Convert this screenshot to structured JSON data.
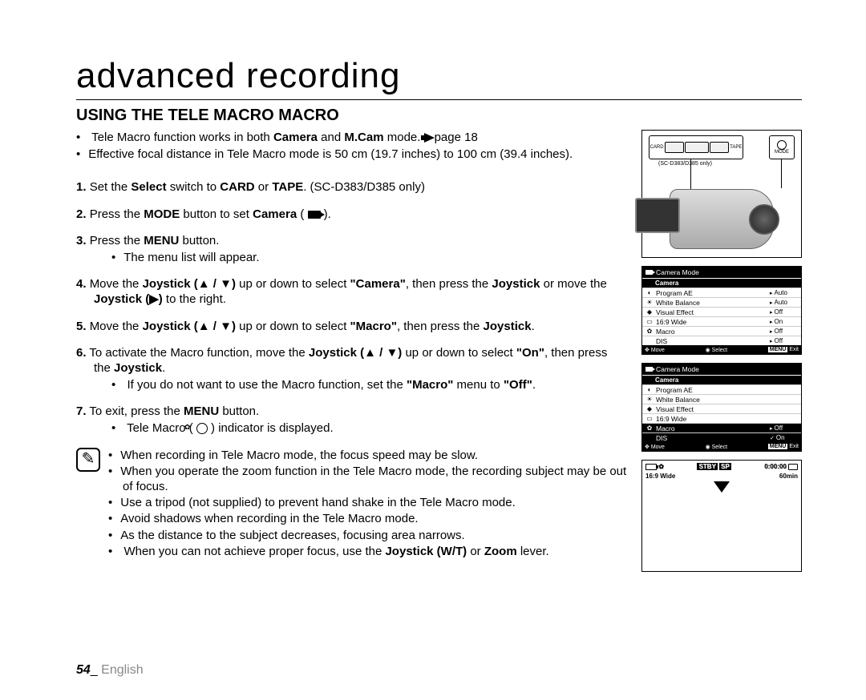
{
  "page_title": "advanced recording",
  "section_title": "USING THE TELE MACRO MACRO",
  "intro": [
    {
      "pre": "Tele Macro function works in both ",
      "b1": "Camera",
      "mid": " and ",
      "b2": "M.Cam",
      "post": " mode. ",
      "pg": "page 18"
    },
    {
      "text": "Effective focal distance in Tele Macro mode is 50 cm (19.7 inches) to 100 cm (39.4 inches)."
    }
  ],
  "steps": [
    {
      "n": "1.",
      "pre": "Set the ",
      "b1": "Select",
      "mid1": " switch to ",
      "b2": "CARD",
      "mid2": " or ",
      "b3": "TAPE",
      "post": ". (SC-D383/D385 only)"
    },
    {
      "n": "2.",
      "pre": "Press the ",
      "b1": "MODE",
      "mid1": " button to set ",
      "b2": "Camera",
      "post": " ( ",
      "icon": "cam",
      "post2": " )."
    },
    {
      "n": "3.",
      "pre": "Press the ",
      "b1": "MENU",
      "post": " button.",
      "subs": [
        "The menu list will appear."
      ]
    },
    {
      "n": "4.",
      "pre": "Move the ",
      "b1": "Joystick (▲ / ▼)",
      "mid1": " up or down to select ",
      "b2": "\"Camera\"",
      "mid2": ", then press the ",
      "b3": "Joystick",
      "mid3": " or move the ",
      "b4": "Joystick (▶)",
      "post": " to the right."
    },
    {
      "n": "5.",
      "pre": "Move the ",
      "b1": "Joystick (▲ / ▼)",
      "mid1": " up or down to select ",
      "b2": "\"Macro\"",
      "mid2": ", then press the ",
      "b3": "Joystick",
      "post": "."
    },
    {
      "n": "6.",
      "pre": "To activate the Macro function, move the ",
      "b1": "Joystick (▲ / ▼)",
      "mid1": " up or down to select ",
      "b2": "\"On\"",
      "mid2": ", then press the ",
      "b3": "Joystick",
      "post": ".",
      "subs_rich": [
        {
          "pre": "If you do not want to use the Macro function, set the ",
          "b1": "\"Macro\"",
          "mid": " menu to ",
          "b2": "\"Off\"",
          "post": "."
        }
      ]
    },
    {
      "n": "7.",
      "pre": "To exit, press the ",
      "b1": "MENU",
      "post": " button.",
      "subs_rich": [
        {
          "pre": "Tele Macro ( ",
          "icon": "macro",
          "post": " ) indicator is displayed."
        }
      ]
    }
  ],
  "notes": [
    "When recording in Tele Macro mode, the focus speed may be slow.",
    "When you operate the zoom function in the Tele Macro mode, the recording subject may be out of focus.",
    "Use a tripod (not supplied) to prevent hand shake in the Tele Macro mode.",
    "Avoid shadows when recording in the Tele Macro mode.",
    "As the distance to the subject decreases, focusing area narrows."
  ],
  "note_last": {
    "pre": "When you can not achieve proper focus, use the ",
    "b1": "Joystick (W/T)",
    "mid": " or ",
    "b2": "Zoom",
    "post": " lever."
  },
  "diag1": {
    "switch_left": "CARD",
    "switch_right": "TAPE",
    "mode": "MODE",
    "note": "(SC-D383/D385 only)"
  },
  "menu1": {
    "header": "Camera Mode",
    "category": "Camera",
    "rows": [
      {
        "ico": "◐",
        "label": "Program AE",
        "val": "Auto"
      },
      {
        "ico": "☀",
        "label": "White Balance",
        "val": "Auto"
      },
      {
        "ico": "◆",
        "label": "Visual Effect",
        "val": "Off"
      },
      {
        "ico": "▭",
        "label": "16:9 Wide",
        "val": "On"
      },
      {
        "ico": "✿",
        "label": "Macro",
        "val": "Off"
      },
      {
        "ico": "",
        "label": "DIS",
        "val": "Off"
      }
    ],
    "footer": {
      "move": "Move",
      "select": "Select",
      "menu": "MENU",
      "exit": "Exit"
    }
  },
  "menu2": {
    "header": "Camera Mode",
    "category": "Camera",
    "rows": [
      {
        "ico": "◐",
        "label": "Program AE"
      },
      {
        "ico": "☀",
        "label": "White Balance"
      },
      {
        "ico": "◆",
        "label": "Visual Effect"
      },
      {
        "ico": "▭",
        "label": "16:9 Wide"
      },
      {
        "ico": "✿",
        "label": "Macro",
        "val": "Off",
        "sel": true
      },
      {
        "ico": "",
        "label": "DIS",
        "val": "On",
        "check": true,
        "sel": true
      }
    ],
    "footer": {
      "move": "Move",
      "select": "Select",
      "menu": "MENU",
      "exit": "Exit"
    }
  },
  "preview": {
    "stby": "STBY",
    "sp": "SP",
    "time": "0:00:00",
    "wide": "16:9 Wide",
    "min": "60min"
  },
  "footer": {
    "page": "54",
    "sep": "_ ",
    "lang": "English"
  }
}
